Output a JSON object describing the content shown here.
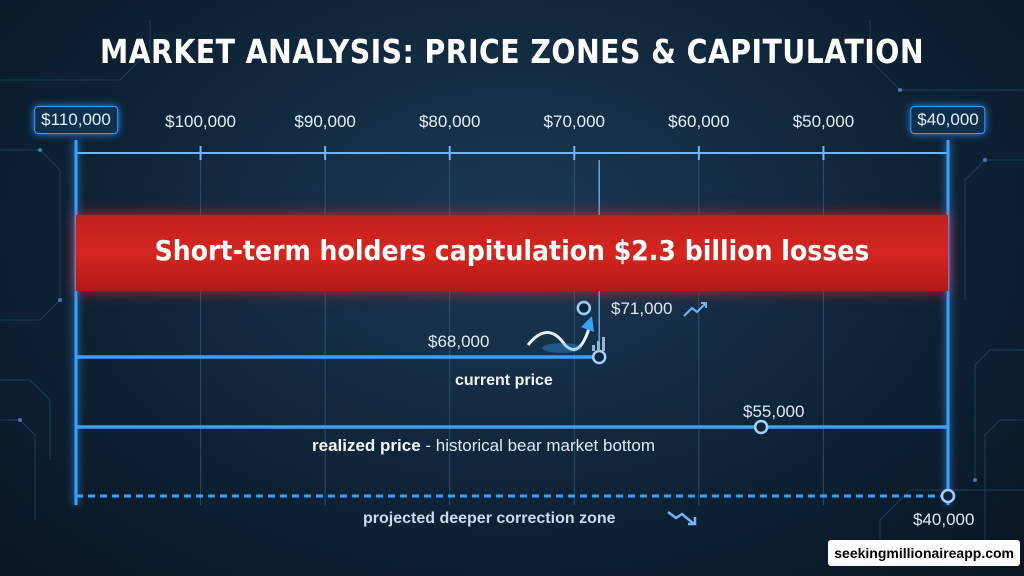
{
  "title": "MARKET ANALYSIS: PRICE ZONES & CAPITULATION",
  "axis": {
    "ticks": [
      "$110,000",
      "$100,000",
      "$90,000",
      "$80,000",
      "$70,000",
      "$60,000",
      "$50,000",
      "$40,000"
    ],
    "min": 40000,
    "max": 110000
  },
  "capitulation_band": {
    "text": "Short-term holders capitulation $2.3 billion losses"
  },
  "current_price": {
    "value_label": "$68,000",
    "value": 68000,
    "caption": "current price",
    "target_label": "$71,000",
    "target_value": 71000
  },
  "realized_price": {
    "value_label": "$55,000",
    "value": 55000,
    "caption_bold": "realized price",
    "caption_rest": " - historical bear market bottom"
  },
  "projected_zone": {
    "value_label": "$40,000",
    "value": 40000,
    "caption": "projected deeper correction zone"
  },
  "watermark": "seekingmillionaireapp.com",
  "colors": {
    "accent_blue": "#3aa0ff",
    "band_red": "#d4261f",
    "background": "#0f2437"
  },
  "icons": [
    "trend-up-icon",
    "trend-down-icon",
    "bar-signal-icon",
    "curved-arrow-icon"
  ]
}
